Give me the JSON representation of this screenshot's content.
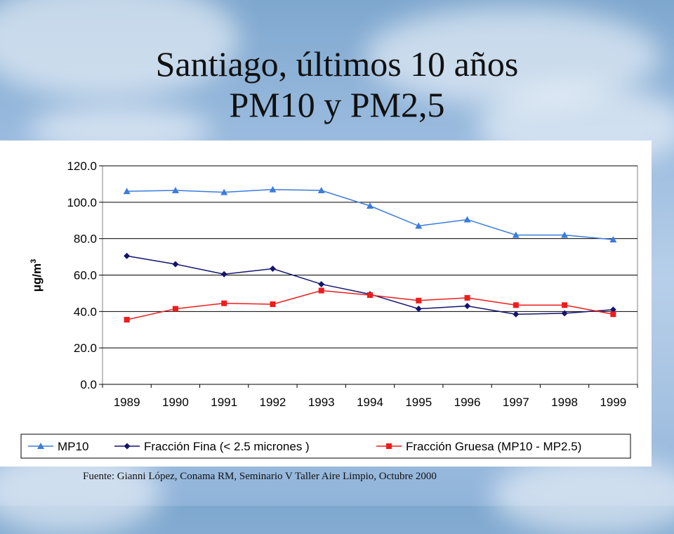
{
  "title": {
    "line1": "Santiago, últimos 10 años",
    "line2": "PM10 y PM2,5"
  },
  "source": "Fuente: Gianni López, Conama RM, Seminario V  Taller Aire Limpio, Octubre 2000",
  "chart_data": {
    "type": "line",
    "ylabel": "μg/m3",
    "ylim": [
      0,
      120
    ],
    "ytick_labels": [
      "0.0",
      "20.0",
      "40.0",
      "60.0",
      "80.0",
      "100.0",
      "120.0"
    ],
    "categories": [
      "1989",
      "1990",
      "1991",
      "1992",
      "1993",
      "1994",
      "1995",
      "1996",
      "1997",
      "1998",
      "1999"
    ],
    "grid": "horizontal",
    "legend_position": "bottom",
    "series": [
      {
        "name": "MP10",
        "color": "#3b7bdb",
        "marker": "triangle",
        "values": [
          106,
          106.5,
          105.5,
          107,
          106.5,
          98,
          87,
          90.5,
          82,
          82,
          79.5
        ]
      },
      {
        "name": "Fracción Fina (< 2.5 micrones )",
        "color": "#14146e",
        "marker": "diamond",
        "values": [
          70.5,
          66,
          60.5,
          63.5,
          55,
          49.5,
          41.5,
          43,
          38.5,
          39,
          41
        ]
      },
      {
        "name": "Fracción Gruesa (MP10 - MP2.5)",
        "color": "#ee1c1c",
        "marker": "square",
        "values": [
          35.5,
          41.5,
          44.5,
          44,
          51.5,
          49,
          46,
          47.5,
          43.5,
          43.5,
          38.5
        ]
      }
    ]
  }
}
